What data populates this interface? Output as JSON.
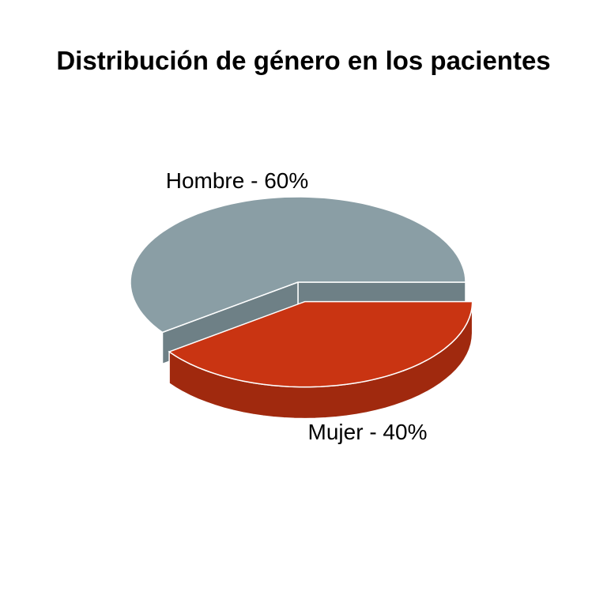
{
  "chart_data": {
    "type": "pie",
    "title": "Distribución de género en los pacientes",
    "style": "3d-exploded",
    "slices": [
      {
        "label": "Hombre",
        "value": 60,
        "display": "Hombre - 60%",
        "color": "#8a9ea5",
        "side_color": "#6e8086"
      },
      {
        "label": "Mujer",
        "value": 40,
        "display": "Mujer - 40%",
        "color": "#c93412",
        "side_color": "#a0290e"
      }
    ]
  }
}
